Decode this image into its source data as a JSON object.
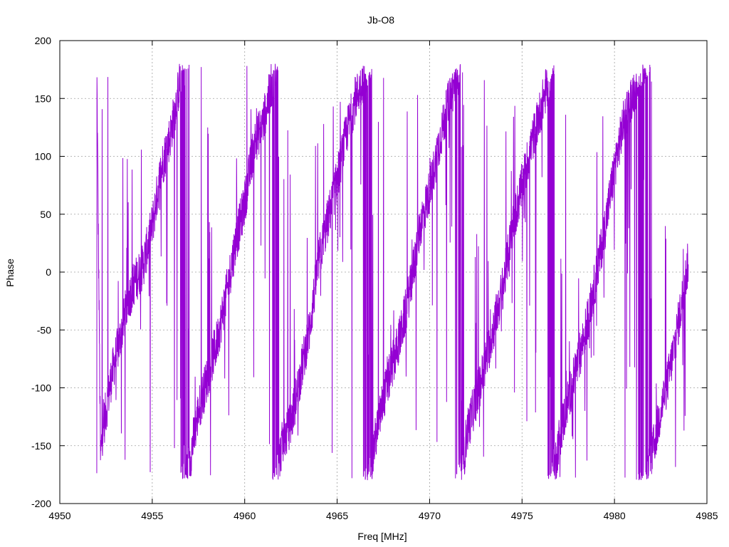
{
  "chart_data": {
    "type": "line",
    "title": "Jb-O8",
    "xlabel": "Freq [MHz]",
    "ylabel": "Phase",
    "xlim": [
      4950,
      4985
    ],
    "ylim": [
      -200,
      200
    ],
    "xticks": [
      4950,
      4955,
      4960,
      4965,
      4970,
      4975,
      4980,
      4985
    ],
    "yticks": [
      -200,
      -150,
      -100,
      -50,
      0,
      50,
      100,
      150,
      200
    ],
    "grid": true,
    "line_color": "#9400d3",
    "series": [
      {
        "x_range": [
          4952.0,
          4984.0
        ],
        "phase_wrap_period_mhz": 4.95,
        "phase_zero_crossing_mhz": 4954.4,
        "values": [
          [
            4952.0,
            180
          ],
          [
            4952.1,
            10
          ],
          [
            4952.2,
            -160
          ],
          [
            4952.3,
            -140
          ],
          [
            4952.5,
            -120
          ],
          [
            4952.8,
            -90
          ],
          [
            4953.0,
            -75
          ],
          [
            4953.3,
            -55
          ],
          [
            4953.6,
            -30
          ],
          [
            4954.0,
            -10
          ],
          [
            4954.5,
            5
          ],
          [
            4955.0,
            40
          ],
          [
            4955.5,
            90
          ],
          [
            4956.0,
            120
          ],
          [
            4956.5,
            165
          ],
          [
            4956.8,
            -175
          ],
          [
            4957.0,
            -165
          ],
          [
            4957.5,
            -120
          ],
          [
            4958.0,
            -90
          ],
          [
            4958.5,
            -60
          ],
          [
            4959.0,
            -20
          ],
          [
            4959.5,
            25
          ],
          [
            4960.0,
            60
          ],
          [
            4960.5,
            110
          ],
          [
            4961.0,
            130
          ],
          [
            4961.5,
            165
          ],
          [
            4961.8,
            -170
          ],
          [
            4962.0,
            -150
          ],
          [
            4962.5,
            -130
          ],
          [
            4963.0,
            -90
          ],
          [
            4963.5,
            -50
          ],
          [
            4964.0,
            10
          ],
          [
            4964.5,
            45
          ],
          [
            4965.0,
            80
          ],
          [
            4965.5,
            120
          ],
          [
            4966.0,
            150
          ],
          [
            4966.5,
            170
          ],
          [
            4966.8,
            -175
          ],
          [
            4967.0,
            -150
          ],
          [
            4967.5,
            -110
          ],
          [
            4968.0,
            -80
          ],
          [
            4968.5,
            -50
          ],
          [
            4969.0,
            -10
          ],
          [
            4969.5,
            40
          ],
          [
            4970.0,
            70
          ],
          [
            4970.5,
            110
          ],
          [
            4971.0,
            145
          ],
          [
            4971.5,
            170
          ],
          [
            4971.8,
            -170
          ],
          [
            4972.0,
            -140
          ],
          [
            4972.5,
            -110
          ],
          [
            4973.0,
            -80
          ],
          [
            4973.5,
            -45
          ],
          [
            4974.0,
            -10
          ],
          [
            4974.5,
            40
          ],
          [
            4975.0,
            75
          ],
          [
            4975.5,
            110
          ],
          [
            4976.0,
            140
          ],
          [
            4976.5,
            170
          ],
          [
            4976.8,
            -165
          ],
          [
            4977.0,
            -145
          ],
          [
            4977.5,
            -110
          ],
          [
            4978.0,
            -80
          ],
          [
            4978.5,
            -45
          ],
          [
            4979.0,
            -5
          ],
          [
            4979.5,
            40
          ],
          [
            4980.0,
            90
          ],
          [
            4980.5,
            130
          ],
          [
            4981.0,
            155
          ],
          [
            4981.5,
            175
          ],
          [
            4981.8,
            -175
          ],
          [
            4982.0,
            -160
          ],
          [
            4982.5,
            -120
          ],
          [
            4983.0,
            -85
          ],
          [
            4983.5,
            -40
          ],
          [
            4984.0,
            10
          ]
        ]
      }
    ]
  }
}
